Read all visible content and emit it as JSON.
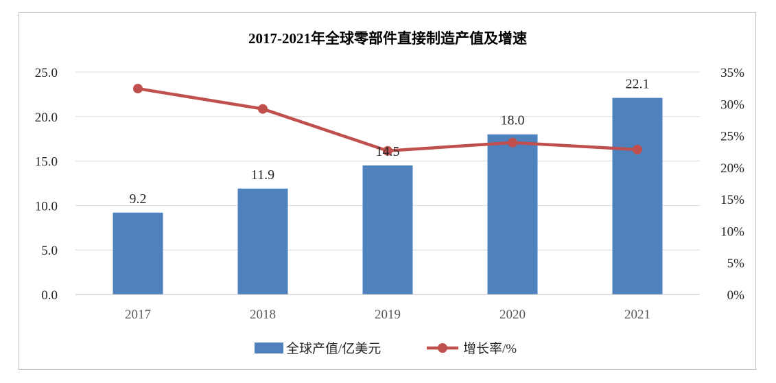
{
  "chart_data": {
    "type": "bar",
    "title": "2017-2021年全球零部件直接制造产值及增速",
    "categories": [
      "2017",
      "2018",
      "2019",
      "2020",
      "2021"
    ],
    "series": [
      {
        "name": "全球产值/亿美元",
        "type": "bar",
        "axis": "left",
        "values": [
          9.2,
          11.9,
          14.5,
          18.0,
          22.1
        ],
        "data_labels": [
          "9.2",
          "11.9",
          "14.5",
          "18.0",
          "22.1"
        ],
        "color": "#4f81bd"
      },
      {
        "name": "增长率/%",
        "type": "line",
        "axis": "right",
        "values": [
          32.4,
          29.2,
          22.6,
          23.9,
          22.8
        ],
        "color": "#c0504d"
      }
    ],
    "y_left": {
      "ticks": [
        "0.0",
        "5.0",
        "10.0",
        "15.0",
        "20.0",
        "25.0"
      ],
      "ylim": [
        0,
        25
      ]
    },
    "y_right": {
      "ticks": [
        "0%",
        "5%",
        "10%",
        "15%",
        "20%",
        "25%",
        "30%",
        "35%"
      ],
      "ylim": [
        0,
        35
      ]
    },
    "grid": "horizontal",
    "legend": "bottom"
  }
}
